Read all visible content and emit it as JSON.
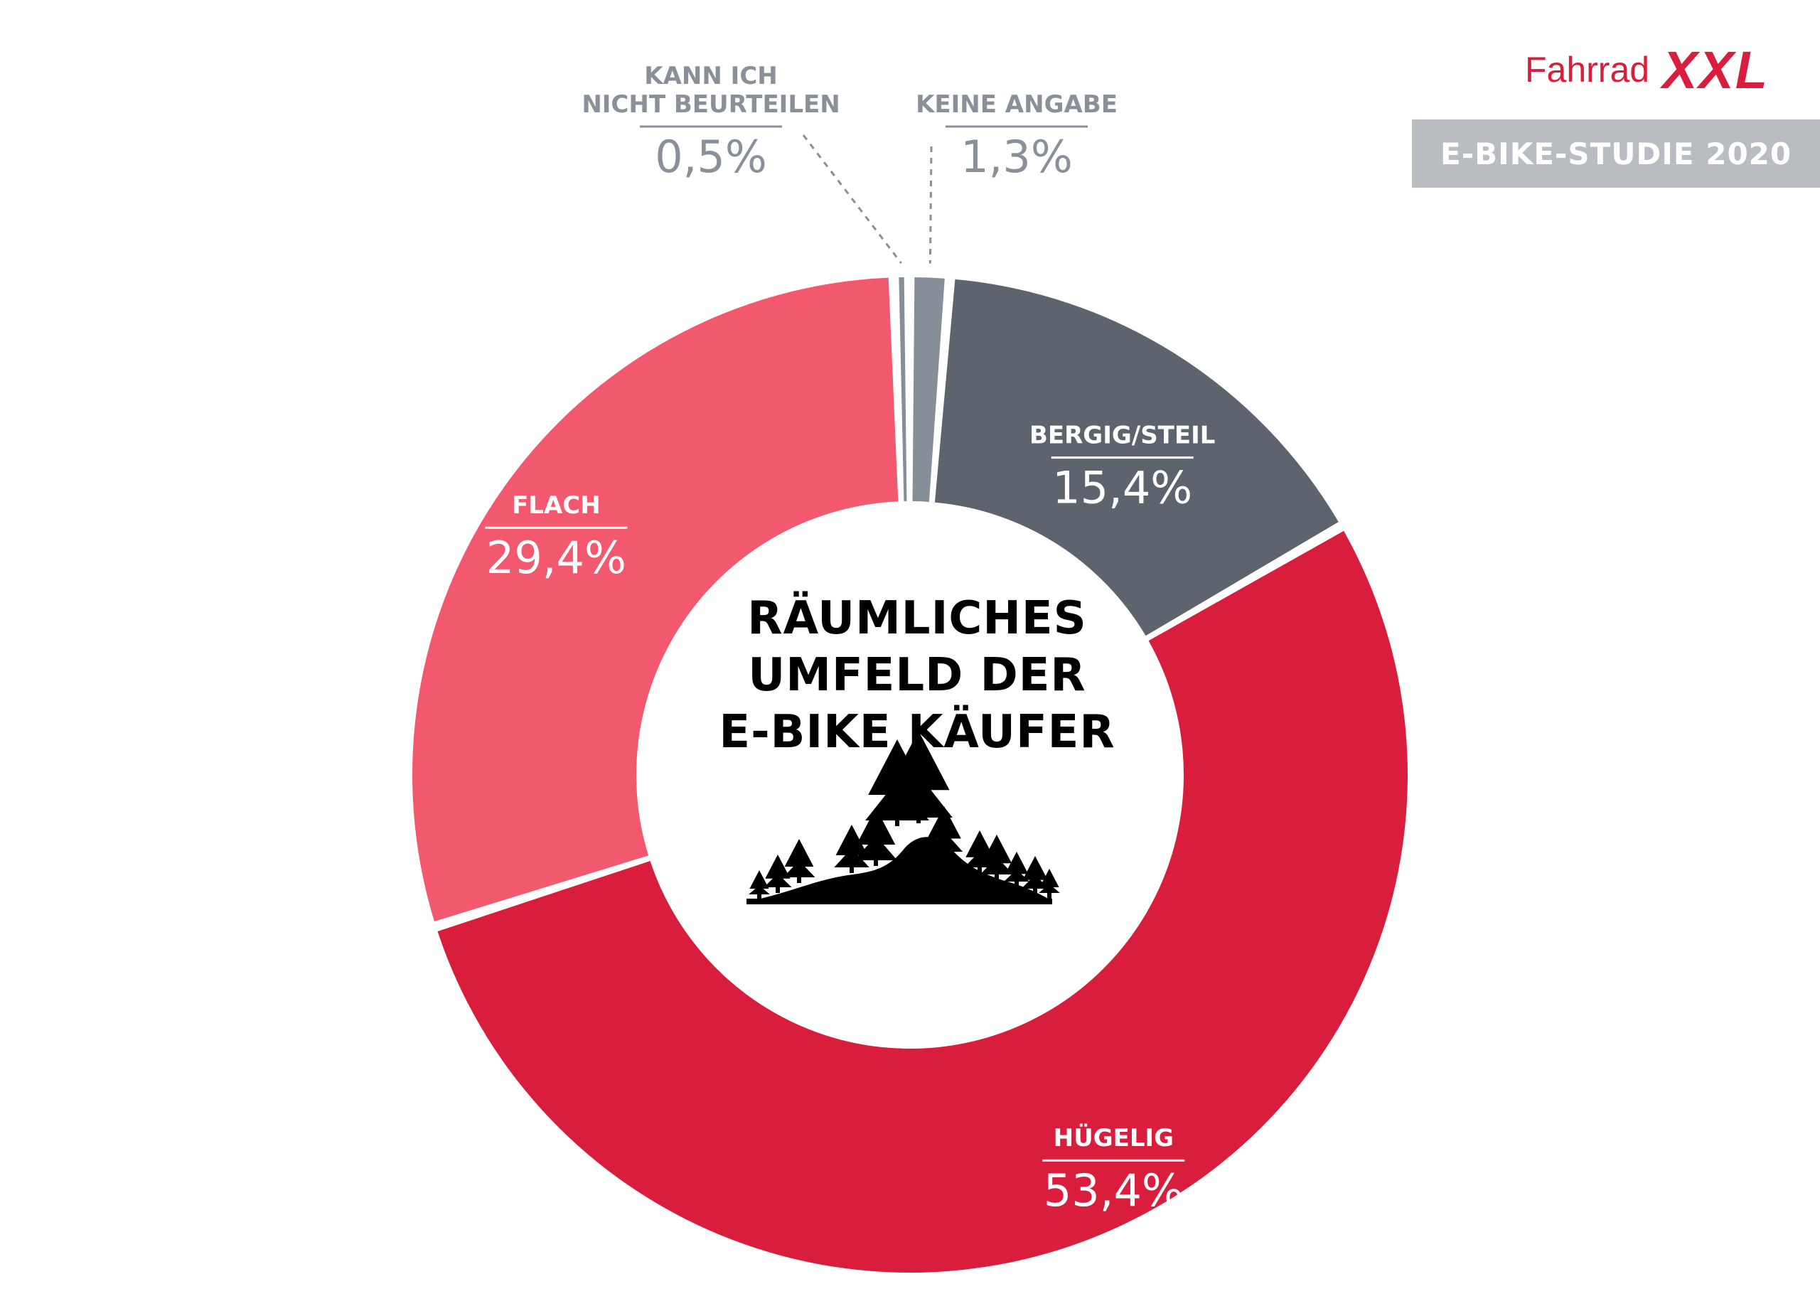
{
  "header": {
    "brand": "Fahrrad",
    "brand_mark": "XXL",
    "study_label": "E-BIKE-STUDIE 2020"
  },
  "center": {
    "title_lines": [
      "RÄUMLICHES",
      "UMFELD DER",
      "E-BIKE KÄUFER"
    ],
    "icon": "hill-with-trees-icon"
  },
  "colors": {
    "bergig": "#5e646d",
    "huegelig": "#d81e3c",
    "flach": "#f2586e",
    "small": "#868e98",
    "label_light": "#ffffff",
    "label_gray": "#8a9099",
    "brand": "#d81e3c",
    "banner": "#b9bdc2"
  },
  "chart_data": {
    "type": "pie",
    "title": "RÄUMLICHES UMFELD DER E-BIKE KÄUFER",
    "unit": "%",
    "slices": [
      {
        "label": "BERGIG/STEIL",
        "value": 15.4,
        "display": "15,4%",
        "color": "#5e646d"
      },
      {
        "label": "HÜGELIG",
        "value": 53.4,
        "display": "53,4%",
        "color": "#d81e3c"
      },
      {
        "label": "FLACH",
        "value": 29.4,
        "display": "29,4%",
        "color": "#f2586e"
      },
      {
        "label": "KANN ICH NICHT BEURTEILEN",
        "value": 0.5,
        "display": "0,5%",
        "color": "#868e98"
      },
      {
        "label": "KEINE ANGABE",
        "value": 1.3,
        "display": "1,3%",
        "color": "#868e98"
      }
    ]
  }
}
